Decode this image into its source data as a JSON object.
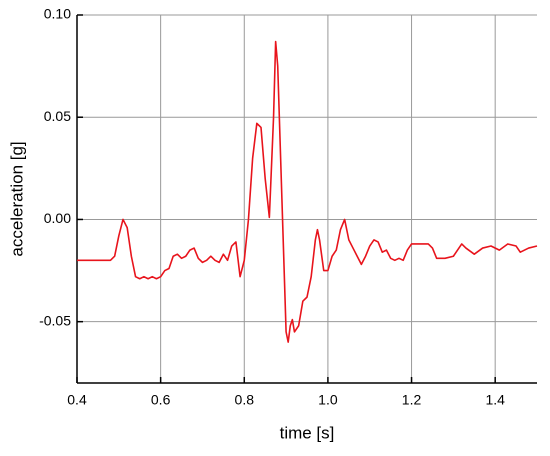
{
  "chart_data": {
    "type": "line",
    "x_label": "time [s]",
    "y_label": "acceleration [g]",
    "x": [
      0.4,
      0.42,
      0.44,
      0.46,
      0.48,
      0.49,
      0.5,
      0.51,
      0.52,
      0.53,
      0.54,
      0.55,
      0.56,
      0.57,
      0.58,
      0.59,
      0.6,
      0.61,
      0.62,
      0.63,
      0.64,
      0.65,
      0.66,
      0.67,
      0.68,
      0.69,
      0.7,
      0.71,
      0.72,
      0.73,
      0.74,
      0.75,
      0.76,
      0.77,
      0.78,
      0.79,
      0.8,
      0.81,
      0.82,
      0.83,
      0.84,
      0.85,
      0.86,
      0.87,
      0.875,
      0.88,
      0.89,
      0.9,
      0.905,
      0.91,
      0.915,
      0.92,
      0.93,
      0.94,
      0.95,
      0.96,
      0.97,
      0.975,
      0.98,
      0.99,
      1.0,
      1.01,
      1.02,
      1.03,
      1.04,
      1.05,
      1.06,
      1.07,
      1.08,
      1.09,
      1.1,
      1.11,
      1.12,
      1.13,
      1.14,
      1.15,
      1.16,
      1.17,
      1.18,
      1.19,
      1.2,
      1.22,
      1.24,
      1.25,
      1.26,
      1.28,
      1.3,
      1.32,
      1.33,
      1.35,
      1.37,
      1.39,
      1.41,
      1.43,
      1.45,
      1.46,
      1.48,
      1.5
    ],
    "series": [
      {
        "name": "acceleration",
        "color": "#e8141c",
        "values": [
          -0.02,
          -0.02,
          -0.02,
          -0.02,
          -0.02,
          -0.018,
          -0.008,
          0.0,
          -0.004,
          -0.018,
          -0.028,
          -0.029,
          -0.028,
          -0.029,
          -0.028,
          -0.029,
          -0.028,
          -0.025,
          -0.024,
          -0.018,
          -0.017,
          -0.019,
          -0.018,
          -0.015,
          -0.014,
          -0.019,
          -0.021,
          -0.02,
          -0.018,
          -0.02,
          -0.021,
          -0.017,
          -0.02,
          -0.013,
          -0.011,
          -0.028,
          -0.02,
          0.0,
          0.03,
          0.047,
          0.045,
          0.02,
          0.001,
          0.05,
          0.087,
          0.075,
          0.01,
          -0.055,
          -0.06,
          -0.052,
          -0.049,
          -0.055,
          -0.052,
          -0.04,
          -0.038,
          -0.028,
          -0.01,
          -0.005,
          -0.01,
          -0.025,
          -0.025,
          -0.018,
          -0.015,
          -0.005,
          0.0,
          -0.01,
          -0.014,
          -0.018,
          -0.022,
          -0.018,
          -0.013,
          -0.01,
          -0.011,
          -0.016,
          -0.015,
          -0.019,
          -0.02,
          -0.019,
          -0.02,
          -0.015,
          -0.012,
          -0.012,
          -0.012,
          -0.014,
          -0.019,
          -0.019,
          -0.018,
          -0.012,
          -0.014,
          -0.017,
          -0.014,
          -0.013,
          -0.015,
          -0.012,
          -0.013,
          -0.016,
          -0.014,
          -0.013
        ]
      }
    ],
    "xlim": [
      0.4,
      1.5
    ],
    "xticks": [
      0.4,
      0.6,
      0.8,
      {
        "value": 1.0,
        "label": "1.0"
      },
      1.2,
      1.4
    ],
    "ylim": [
      -0.08,
      0.1
    ],
    "yticks": [
      {
        "value": -0.05,
        "label": "-0.05"
      },
      {
        "value": 0.0,
        "label": "0.00"
      },
      0.05,
      {
        "value": 0.1,
        "label": "0.10"
      }
    ],
    "grid": true
  }
}
